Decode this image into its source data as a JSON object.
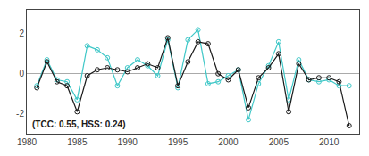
{
  "chart_data": {
    "type": "line",
    "x": [
      1981,
      1982,
      1983,
      1984,
      1985,
      1986,
      1987,
      1988,
      1989,
      1990,
      1991,
      1992,
      1993,
      1994,
      1995,
      1996,
      1997,
      1998,
      1999,
      2000,
      2001,
      2002,
      2003,
      2004,
      2005,
      2006,
      2007,
      2008,
      2009,
      2010,
      2011,
      2012
    ],
    "series": [
      {
        "color": "#40c8c8",
        "marker": "circle-open",
        "values": [
          -0.6,
          0.7,
          -0.3,
          -0.4,
          -1.3,
          1.4,
          1.2,
          0.8,
          -0.6,
          0.3,
          0.7,
          0.4,
          -0.1,
          1.7,
          -0.7,
          1.7,
          2.2,
          -0.5,
          -0.4,
          -0.1,
          0.2,
          -2.3,
          -0.5,
          0.4,
          1.6,
          -1.3,
          0.7,
          -0.3,
          -0.4,
          -0.3,
          -0.6,
          -0.6
        ]
      },
      {
        "color": "#1a1a1a",
        "marker": "circle-open",
        "values": [
          -0.7,
          0.6,
          -0.4,
          -0.6,
          -1.9,
          -0.1,
          0.2,
          0.3,
          0.2,
          0.1,
          0.3,
          0.5,
          0.3,
          1.8,
          -0.6,
          0.6,
          1.6,
          1.5,
          0.0,
          -0.3,
          0.2,
          -1.7,
          -0.2,
          0.3,
          1.0,
          -1.9,
          0.5,
          -0.3,
          -0.2,
          -0.2,
          -0.4,
          -2.6
        ]
      }
    ],
    "annotation": "(TCC: 0.55, HSS: 0.24)",
    "xlim": [
      1980,
      2013
    ],
    "xticks": [
      1980,
      1985,
      1990,
      1995,
      2000,
      2005,
      2010
    ],
    "ylim": [
      -3.0,
      3.2
    ],
    "yticks": [
      -2,
      0,
      2
    ],
    "grid": false
  }
}
